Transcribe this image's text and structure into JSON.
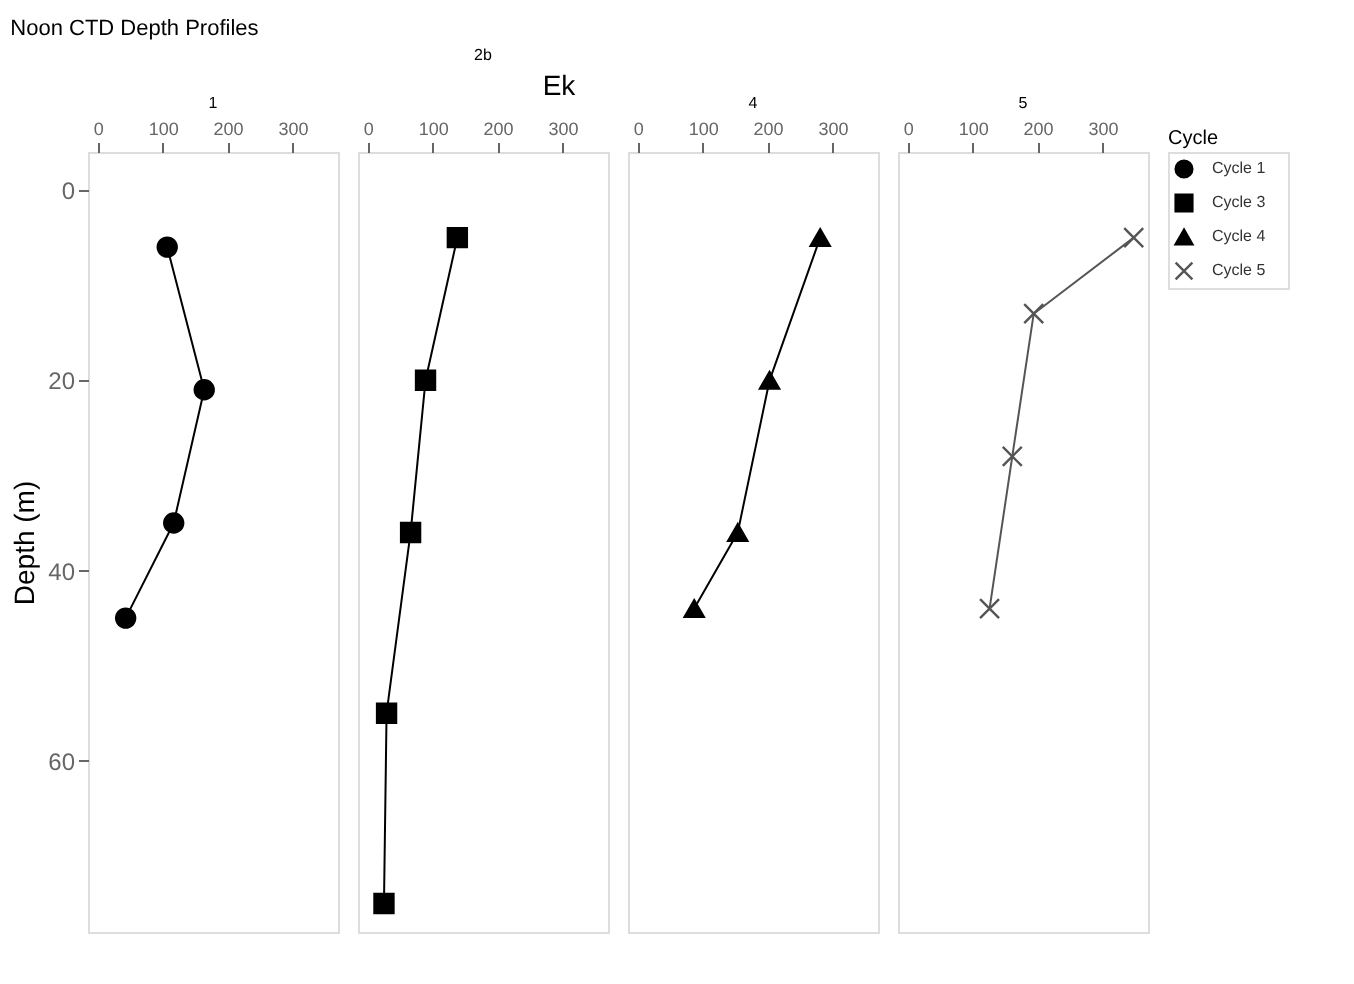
{
  "chart_data": [
    {
      "type": "line",
      "title": "1",
      "annotations": [
        "Noon CTD Depth Profiles"
      ],
      "ylabel": "Depth (m)",
      "xlim": [
        -15,
        370
      ],
      "xticks": [
        0,
        100,
        200,
        300
      ],
      "ylim": [
        78,
        -4
      ],
      "yticks": [
        0,
        20,
        40,
        60
      ],
      "grid": false,
      "series": [
        {
          "name": "Cycle 1",
          "color": "#000000",
          "marker": "circle",
          "x": [
            107,
            164,
            117,
            43
          ],
          "values": [
            6,
            21,
            35,
            45
          ]
        }
      ]
    },
    {
      "type": "line",
      "title": "2b",
      "xlabel": "Ek",
      "xlim": [
        -15,
        370
      ],
      "xticks": [
        0,
        100,
        200,
        300
      ],
      "ylim": [
        78,
        -4
      ],
      "tick_labels": "x",
      "grid": false,
      "series": [
        {
          "name": "Cycle 3",
          "color": "#000000",
          "marker": "square",
          "x": [
            138,
            89,
            66,
            29,
            25
          ],
          "values": [
            5,
            20,
            36,
            55,
            75
          ]
        }
      ]
    },
    {
      "type": "line",
      "title": "4",
      "xlim": [
        -15,
        370
      ],
      "xticks": [
        0,
        100,
        200,
        300
      ],
      "ylim": [
        78,
        -4
      ],
      "tick_labels": "x",
      "grid": false,
      "series": [
        {
          "name": "Cycle 4",
          "color": "#000000",
          "marker": "triangle",
          "x": [
            281,
            203,
            154,
            87
          ],
          "values": [
            5,
            20,
            36,
            44
          ]
        }
      ]
    },
    {
      "type": "line",
      "title": "5",
      "xlim": [
        -15,
        370
      ],
      "xticks": [
        0,
        100,
        200,
        300
      ],
      "ylim": [
        78,
        -4
      ],
      "tick_labels": "x",
      "grid": false,
      "legend": "right",
      "legend_title": "Cycle",
      "series": [
        {
          "name": "Cycle 5",
          "color": "#555555",
          "marker": "cross",
          "x": [
            348,
            194,
            161,
            126
          ],
          "values": [
            5,
            13,
            28,
            44
          ]
        }
      ]
    }
  ]
}
